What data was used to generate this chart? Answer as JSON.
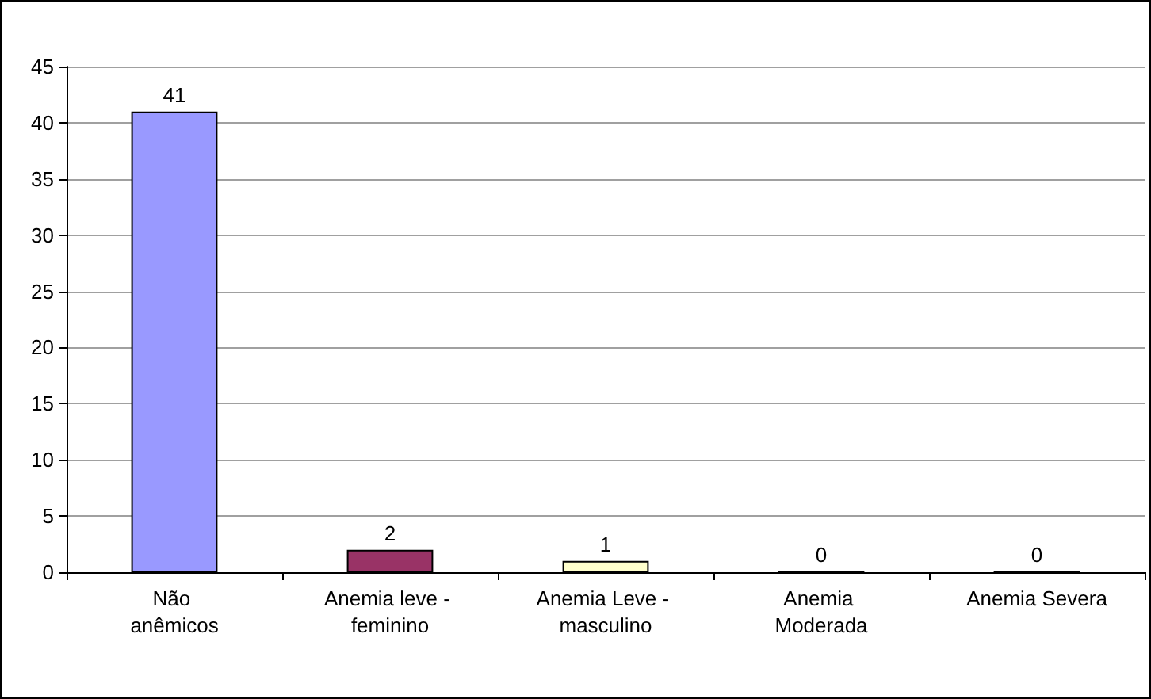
{
  "chart_data": {
    "type": "bar",
    "categories": [
      "Não anêmicos",
      "Anemia leve - feminino",
      "Anemia Leve - masculino",
      "Anemia Moderada",
      "Anemia Severa"
    ],
    "values": [
      41,
      2,
      1,
      0,
      0
    ],
    "colors": [
      "#9999ff",
      "#993366",
      "#ffffcc",
      "#9999ff",
      "#9999ff"
    ],
    "ylim": [
      0,
      45
    ],
    "yticks": [
      0,
      5,
      10,
      15,
      20,
      25,
      30,
      35,
      40,
      45
    ],
    "grid": "y",
    "data_labels": true
  }
}
